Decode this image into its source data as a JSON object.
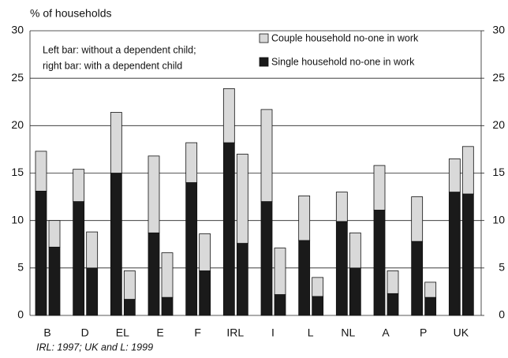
{
  "chart_data": {
    "type": "grouped-stacked-bar",
    "ylabel": "% of households",
    "annotation": [
      "Left bar: without a dependent child;",
      "right bar: with a dependent child"
    ],
    "footnote": "IRL: 1997; UK and L: 1999",
    "categories": [
      "B",
      "D",
      "EL",
      "E",
      "F",
      "IRL",
      "I",
      "L",
      "NL",
      "A",
      "P",
      "UK"
    ],
    "series": [
      {
        "name": "Single household no-one in work",
        "color": "#1a1a1a",
        "values": [
          [
            13.1,
            7.2
          ],
          [
            12.0,
            5.0
          ],
          [
            15.0,
            1.7
          ],
          [
            8.7,
            1.9
          ],
          [
            14.0,
            4.7
          ],
          [
            18.2,
            7.6
          ],
          [
            12.0,
            2.2
          ],
          [
            7.9,
            2.0
          ],
          [
            9.9,
            5.0
          ],
          [
            11.1,
            2.3
          ],
          [
            7.8,
            1.9
          ],
          [
            13.0,
            12.8
          ]
        ]
      },
      {
        "name": "Couple household no-one in work",
        "color": "#d9d9d9",
        "values": [
          [
            4.2,
            2.8
          ],
          [
            3.4,
            3.8
          ],
          [
            6.4,
            3.0
          ],
          [
            8.1,
            4.7
          ],
          [
            4.2,
            3.9
          ],
          [
            5.7,
            9.4
          ],
          [
            9.7,
            4.9
          ],
          [
            4.7,
            2.0
          ],
          [
            3.1,
            3.7
          ],
          [
            4.7,
            2.4
          ],
          [
            4.7,
            1.6
          ],
          [
            3.5,
            5.0
          ]
        ]
      }
    ],
    "ylim": [
      0,
      30
    ],
    "yticks": [
      0,
      5,
      10,
      15,
      20,
      25,
      30
    ],
    "y2lim": [
      0,
      30
    ],
    "y2ticks": [
      0,
      5,
      10,
      15,
      20,
      25,
      30
    ],
    "grid": true
  }
}
